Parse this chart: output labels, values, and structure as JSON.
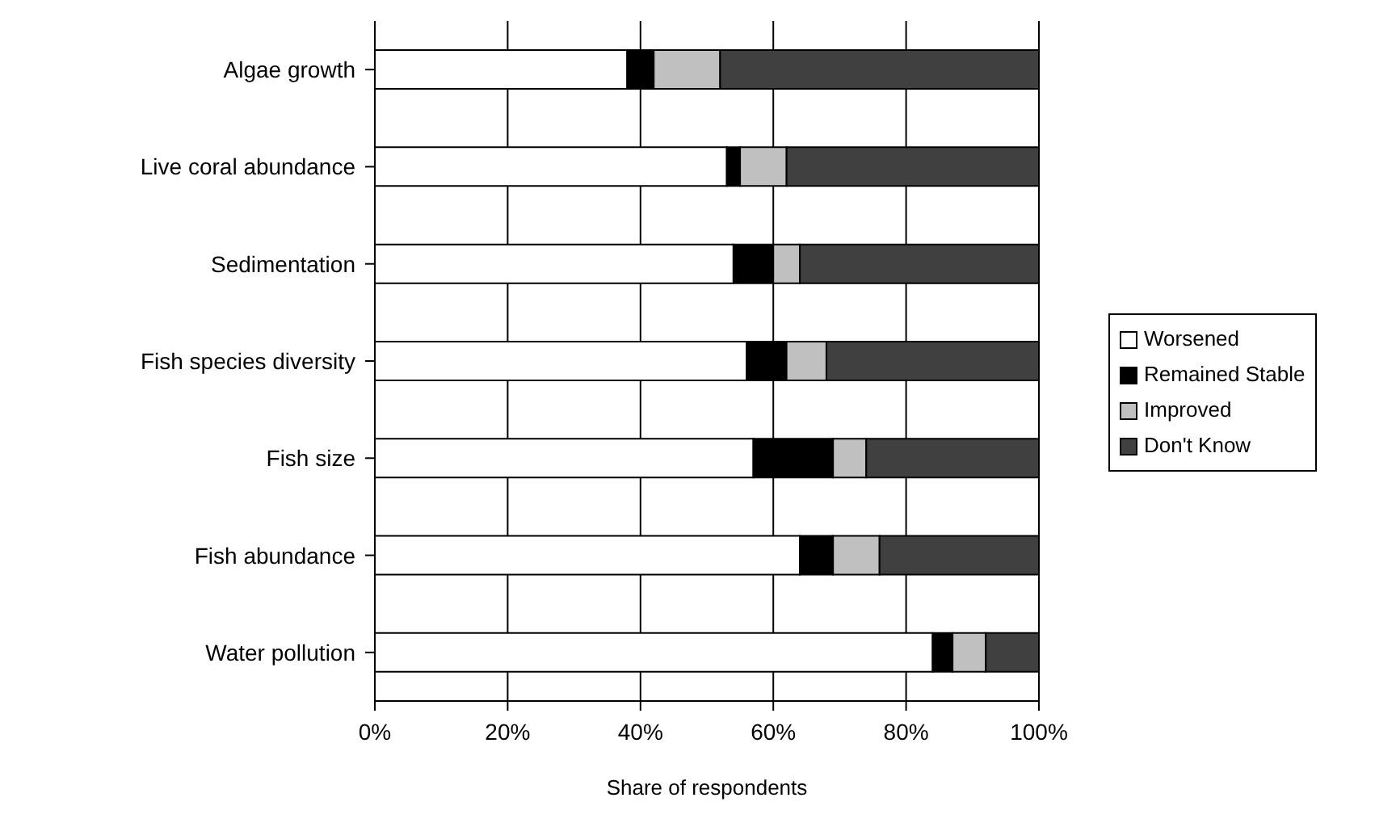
{
  "chart_data": {
    "type": "bar",
    "orientation": "horizontal",
    "stacked": true,
    "xlabel": "Share of respondents",
    "categories": [
      "Algae growth",
      "Live coral abundance",
      "Sedimentation",
      "Fish species diversity",
      "Fish size",
      "Fish abundance",
      "Water pollution"
    ],
    "series": [
      {
        "name": "Worsened",
        "color": "#ffffff",
        "values": [
          38,
          53,
          54,
          56,
          57,
          64,
          84
        ]
      },
      {
        "name": "Remained Stable",
        "color": "#000000",
        "values": [
          4,
          2,
          6,
          6,
          12,
          5,
          3
        ]
      },
      {
        "name": "Improved",
        "color": "#c0c0c0",
        "values": [
          10,
          7,
          4,
          6,
          5,
          7,
          5
        ]
      },
      {
        "name": "Don't Know",
        "color": "#404040",
        "values": [
          48,
          38,
          36,
          32,
          26,
          24,
          8
        ]
      }
    ],
    "xlim": [
      0,
      100
    ],
    "xticks": [
      {
        "value": 0,
        "label": "0%"
      },
      {
        "value": 20,
        "label": "20%"
      },
      {
        "value": 40,
        "label": "40%"
      },
      {
        "value": 60,
        "label": "60%"
      },
      {
        "value": 80,
        "label": "80%"
      },
      {
        "value": 100,
        "label": "100%"
      }
    ],
    "grid": "x",
    "legend": "right"
  }
}
